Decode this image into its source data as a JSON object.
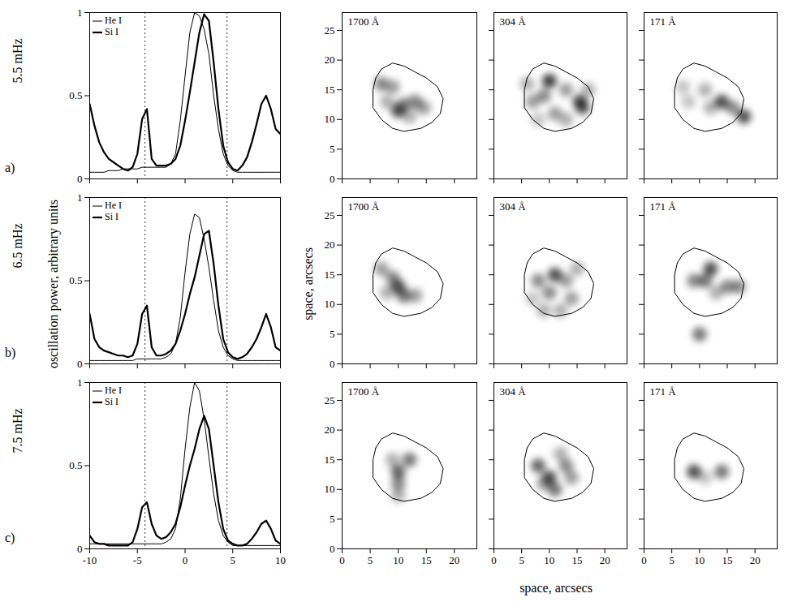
{
  "figure": {
    "rows": [
      {
        "frequency": "5.5 mHz",
        "letter": "a)"
      },
      {
        "frequency": "6.5 mHz",
        "letter": "b)"
      },
      {
        "frequency": "7.5 mHz",
        "letter": "c)"
      }
    ],
    "power_label": "oscillation power, arbitrary units",
    "space_label": "space, arcsecs",
    "umbra_contour": [
      [
        6,
        17
      ],
      [
        7,
        18.5
      ],
      [
        9,
        19.5
      ],
      [
        11,
        19
      ],
      [
        13,
        18
      ],
      [
        15,
        17
      ],
      [
        17,
        15.5
      ],
      [
        18,
        13.5
      ],
      [
        17.5,
        11
      ],
      [
        16,
        9.5
      ],
      [
        14,
        8.5
      ],
      [
        11,
        8
      ],
      [
        9,
        8.5
      ],
      [
        7,
        10
      ],
      [
        5.5,
        12
      ],
      [
        5.5,
        15
      ],
      [
        6,
        17
      ]
    ]
  },
  "chart_data": [
    {
      "type": "line",
      "legend": "top-left",
      "tick_labels": "y",
      "x": [
        -10,
        -9.5,
        -9,
        -8.5,
        -8,
        -7.5,
        -7,
        -6.5,
        -6,
        -5.5,
        -5,
        -4.5,
        -4,
        -3.5,
        -3,
        -2.5,
        -2,
        -1.5,
        -1,
        -0.5,
        0,
        0.5,
        1,
        1.5,
        2,
        2.5,
        3,
        3.5,
        4,
        4.5,
        5,
        5.5,
        6,
        6.5,
        7,
        7.5,
        8,
        8.5,
        9,
        9.5,
        10
      ],
      "xlim": [
        -10,
        10
      ],
      "xticks": [
        -10,
        -5,
        0,
        5,
        10
      ],
      "ylim": [
        0,
        1
      ],
      "yticks": [
        0,
        0.5,
        1
      ],
      "reference_lines": [
        -4.2,
        4.4
      ],
      "series": [
        {
          "name": "He I",
          "color": "#000000",
          "line_style": "solid",
          "values": [
            0.04,
            0.04,
            0.04,
            0.04,
            0.05,
            0.05,
            0.05,
            0.06,
            0.06,
            0.06,
            0.06,
            0.07,
            0.07,
            0.07,
            0.07,
            0.07,
            0.07,
            0.09,
            0.15,
            0.35,
            0.62,
            0.88,
            1.0,
            0.98,
            0.9,
            0.75,
            0.5,
            0.3,
            0.15,
            0.08,
            0.05,
            0.04,
            0.04,
            0.04,
            0.04,
            0.04,
            0.04,
            0.04,
            0.04,
            0.04,
            0.04
          ]
        },
        {
          "name": "Si I",
          "color": "#000000",
          "line_style": "solid",
          "values": [
            0.45,
            0.32,
            0.22,
            0.16,
            0.12,
            0.1,
            0.08,
            0.06,
            0.05,
            0.07,
            0.15,
            0.36,
            0.42,
            0.12,
            0.08,
            0.08,
            0.08,
            0.09,
            0.12,
            0.2,
            0.35,
            0.52,
            0.7,
            0.88,
            0.99,
            0.95,
            0.7,
            0.42,
            0.2,
            0.1,
            0.06,
            0.05,
            0.08,
            0.13,
            0.22,
            0.33,
            0.45,
            0.5,
            0.42,
            0.3,
            0.27
          ]
        }
      ]
    },
    {
      "type": "map",
      "title": "1700 Å",
      "tick_labels": "y",
      "xlim": [
        0,
        24
      ],
      "xticks": [
        0,
        5,
        10,
        15,
        20
      ],
      "ylim": [
        0,
        28
      ],
      "yticks": [
        0,
        5,
        10,
        15,
        20,
        25
      ],
      "points": [
        [
          7,
          16,
          0.6
        ],
        [
          9,
          15.5,
          0.5
        ],
        [
          10,
          11.5,
          0.9
        ],
        [
          11,
          12.5,
          0.6
        ],
        [
          13,
          13,
          0.6
        ],
        [
          14.5,
          12,
          0.5
        ],
        [
          8,
          13,
          0.4
        ],
        [
          12,
          10.5,
          0.4
        ]
      ]
    },
    {
      "type": "map",
      "title": "304 Å",
      "tick_labels": false,
      "xlim": [
        0,
        24
      ],
      "xticks": [
        0,
        5,
        10,
        15,
        20
      ],
      "ylim": [
        0,
        28
      ],
      "yticks": [
        0,
        5,
        10,
        15,
        20,
        25
      ],
      "points": [
        [
          10,
          16.5,
          1
        ],
        [
          9,
          14,
          0.6
        ],
        [
          15.5,
          13,
          0.9
        ],
        [
          16,
          12,
          0.8
        ],
        [
          13,
          15,
          0.5
        ],
        [
          7,
          13,
          0.5
        ],
        [
          11,
          11,
          0.5
        ],
        [
          6,
          16,
          0.4
        ],
        [
          13,
          10,
          0.4
        ],
        [
          8,
          10,
          0.3
        ],
        [
          17,
          15,
          0.4
        ]
      ]
    },
    {
      "type": "map",
      "title": "171 Å",
      "tick_labels": false,
      "xlim": [
        0,
        24
      ],
      "xticks": [
        0,
        5,
        10,
        15,
        20
      ],
      "ylim": [
        0,
        28
      ],
      "yticks": [
        0,
        5,
        10,
        15,
        20,
        25
      ],
      "points": [
        [
          14,
          13,
          0.9
        ],
        [
          18,
          10.5,
          0.9
        ],
        [
          16,
          12,
          0.6
        ],
        [
          11,
          15,
          0.4
        ],
        [
          8,
          13,
          0.3
        ],
        [
          7,
          15.5,
          0.3
        ],
        [
          12,
          12,
          0.4
        ]
      ]
    },
    {
      "type": "line",
      "legend": "top-left",
      "tick_labels": "y",
      "x": [
        -10,
        -9.5,
        -9,
        -8.5,
        -8,
        -7.5,
        -7,
        -6.5,
        -6,
        -5.5,
        -5,
        -4.5,
        -4,
        -3.5,
        -3,
        -2.5,
        -2,
        -1.5,
        -1,
        -0.5,
        0,
        0.5,
        1,
        1.5,
        2,
        2.5,
        3,
        3.5,
        4,
        4.5,
        5,
        5.5,
        6,
        6.5,
        7,
        7.5,
        8,
        8.5,
        9,
        9.5,
        10
      ],
      "xlim": [
        -10,
        10
      ],
      "xticks": [
        -10,
        -5,
        0,
        5,
        10
      ],
      "ylim": [
        0,
        1
      ],
      "yticks": [
        0,
        0.5,
        1
      ],
      "reference_lines": [
        -4.2,
        4.4
      ],
      "series": [
        {
          "name": "He I",
          "color": "#000000",
          "line_style": "solid",
          "values": [
            0.02,
            0.02,
            0.02,
            0.02,
            0.02,
            0.02,
            0.02,
            0.02,
            0.02,
            0.02,
            0.03,
            0.03,
            0.03,
            0.03,
            0.03,
            0.03,
            0.04,
            0.06,
            0.12,
            0.28,
            0.55,
            0.78,
            0.9,
            0.88,
            0.75,
            0.58,
            0.38,
            0.2,
            0.1,
            0.05,
            0.03,
            0.02,
            0.02,
            0.02,
            0.02,
            0.02,
            0.02,
            0.02,
            0.02,
            0.02,
            0.02
          ]
        },
        {
          "name": "Si I",
          "color": "#000000",
          "line_style": "solid",
          "values": [
            0.3,
            0.15,
            0.1,
            0.08,
            0.07,
            0.06,
            0.05,
            0.05,
            0.04,
            0.05,
            0.12,
            0.3,
            0.35,
            0.1,
            0.05,
            0.05,
            0.06,
            0.08,
            0.12,
            0.2,
            0.3,
            0.42,
            0.52,
            0.65,
            0.78,
            0.8,
            0.6,
            0.35,
            0.15,
            0.07,
            0.04,
            0.03,
            0.04,
            0.06,
            0.1,
            0.15,
            0.22,
            0.3,
            0.22,
            0.1,
            0.08
          ]
        }
      ]
    },
    {
      "type": "map",
      "title": "1700 Å",
      "tick_labels": "y",
      "xlim": [
        0,
        24
      ],
      "xticks": [
        0,
        5,
        10,
        15,
        20
      ],
      "ylim": [
        0,
        28
      ],
      "yticks": [
        0,
        5,
        10,
        15,
        20,
        25
      ],
      "points": [
        [
          7,
          16,
          0.5
        ],
        [
          10,
          13,
          0.9
        ],
        [
          11,
          11.5,
          0.7
        ],
        [
          9,
          14.5,
          0.6
        ],
        [
          13,
          11.5,
          0.5
        ],
        [
          8,
          12,
          0.4
        ]
      ]
    },
    {
      "type": "map",
      "title": "304 Å",
      "tick_labels": false,
      "xlim": [
        0,
        24
      ],
      "xticks": [
        0,
        5,
        10,
        15,
        20
      ],
      "ylim": [
        0,
        28
      ],
      "yticks": [
        0,
        5,
        10,
        15,
        20,
        25
      ],
      "points": [
        [
          11,
          15,
          0.9
        ],
        [
          8,
          14,
          0.6
        ],
        [
          10,
          12,
          0.6
        ],
        [
          13,
          14,
          0.5
        ],
        [
          14,
          11,
          0.5
        ],
        [
          9,
          9,
          0.4
        ],
        [
          12,
          9,
          0.4
        ],
        [
          7,
          11,
          0.3
        ],
        [
          15,
          16,
          0.4
        ]
      ]
    },
    {
      "type": "map",
      "title": "171 Å",
      "tick_labels": false,
      "xlim": [
        0,
        24
      ],
      "xticks": [
        0,
        5,
        10,
        15,
        20
      ],
      "ylim": [
        0,
        28
      ],
      "yticks": [
        0,
        5,
        10,
        15,
        20,
        25
      ],
      "points": [
        [
          12,
          16,
          0.9
        ],
        [
          11,
          14,
          0.7
        ],
        [
          9,
          14,
          0.6
        ],
        [
          15,
          13,
          0.6
        ],
        [
          17,
          13,
          0.6
        ],
        [
          10,
          5,
          0.7
        ],
        [
          13,
          12,
          0.4
        ]
      ]
    },
    {
      "type": "line",
      "legend": "top-left",
      "x": [
        -10,
        -9.5,
        -9,
        -8.5,
        -8,
        -7.5,
        -7,
        -6.5,
        -6,
        -5.5,
        -5,
        -4.5,
        -4,
        -3.5,
        -3,
        -2.5,
        -2,
        -1.5,
        -1,
        -0.5,
        0,
        0.5,
        1,
        1.5,
        2,
        2.5,
        3,
        3.5,
        4,
        4.5,
        5,
        5.5,
        6,
        6.5,
        7,
        7.5,
        8,
        8.5,
        9,
        9.5,
        10
      ],
      "xlim": [
        -10,
        10
      ],
      "xticks": [
        -10,
        -5,
        0,
        5,
        10
      ],
      "ylim": [
        0,
        1
      ],
      "yticks": [
        0,
        0.5,
        1
      ],
      "reference_lines": [
        -4.2,
        4.4
      ],
      "series": [
        {
          "name": "He I",
          "color": "#000000",
          "line_style": "solid",
          "values": [
            0.03,
            0.03,
            0.03,
            0.03,
            0.03,
            0.03,
            0.03,
            0.03,
            0.03,
            0.03,
            0.03,
            0.03,
            0.03,
            0.03,
            0.03,
            0.03,
            0.04,
            0.06,
            0.12,
            0.3,
            0.6,
            0.85,
            1.0,
            0.95,
            0.78,
            0.55,
            0.33,
            0.17,
            0.08,
            0.04,
            0.02,
            0.02,
            0.02,
            0.02,
            0.02,
            0.02,
            0.02,
            0.02,
            0.02,
            0.02,
            0.02
          ]
        },
        {
          "name": "Si I",
          "color": "#000000",
          "line_style": "solid",
          "values": [
            0.08,
            0.04,
            0.03,
            0.03,
            0.02,
            0.02,
            0.02,
            0.02,
            0.02,
            0.04,
            0.12,
            0.25,
            0.28,
            0.15,
            0.08,
            0.06,
            0.07,
            0.1,
            0.15,
            0.25,
            0.38,
            0.5,
            0.6,
            0.72,
            0.8,
            0.72,
            0.5,
            0.28,
            0.12,
            0.05,
            0.03,
            0.02,
            0.02,
            0.03,
            0.06,
            0.1,
            0.15,
            0.17,
            0.12,
            0.05,
            0.03
          ]
        }
      ]
    },
    {
      "type": "map",
      "title": "1700 Å",
      "xlim": [
        0,
        24
      ],
      "xticks": [
        0,
        5,
        10,
        15,
        20
      ],
      "ylim": [
        0,
        28
      ],
      "yticks": [
        0,
        5,
        10,
        15,
        20,
        25
      ],
      "points": [
        [
          10,
          13,
          0.8
        ],
        [
          10,
          11,
          0.6
        ],
        [
          12,
          15,
          0.7
        ],
        [
          9,
          15,
          0.4
        ],
        [
          10,
          9,
          0.4
        ]
      ]
    },
    {
      "type": "map",
      "title": "304 Å",
      "tick_labels": "x",
      "xlim": [
        0,
        24
      ],
      "xticks": [
        0,
        5,
        10,
        15,
        20
      ],
      "ylim": [
        0,
        28
      ],
      "yticks": [
        0,
        5,
        10,
        15,
        20,
        25
      ],
      "points": [
        [
          8,
          14,
          0.8
        ],
        [
          10,
          12,
          0.9
        ],
        [
          11,
          10,
          0.7
        ],
        [
          13,
          14,
          0.6
        ],
        [
          14,
          12,
          0.5
        ],
        [
          9,
          11,
          0.5
        ],
        [
          12,
          16,
          0.4
        ]
      ]
    },
    {
      "type": "map",
      "title": "171 Å",
      "tick_labels": "x",
      "xlim": [
        0,
        24
      ],
      "xticks": [
        0,
        5,
        10,
        15,
        20
      ],
      "ylim": [
        0,
        28
      ],
      "yticks": [
        0,
        5,
        10,
        15,
        20,
        25
      ],
      "points": [
        [
          9,
          13,
          0.9
        ],
        [
          14,
          13,
          0.7
        ],
        [
          11,
          12,
          0.3
        ]
      ]
    }
  ]
}
